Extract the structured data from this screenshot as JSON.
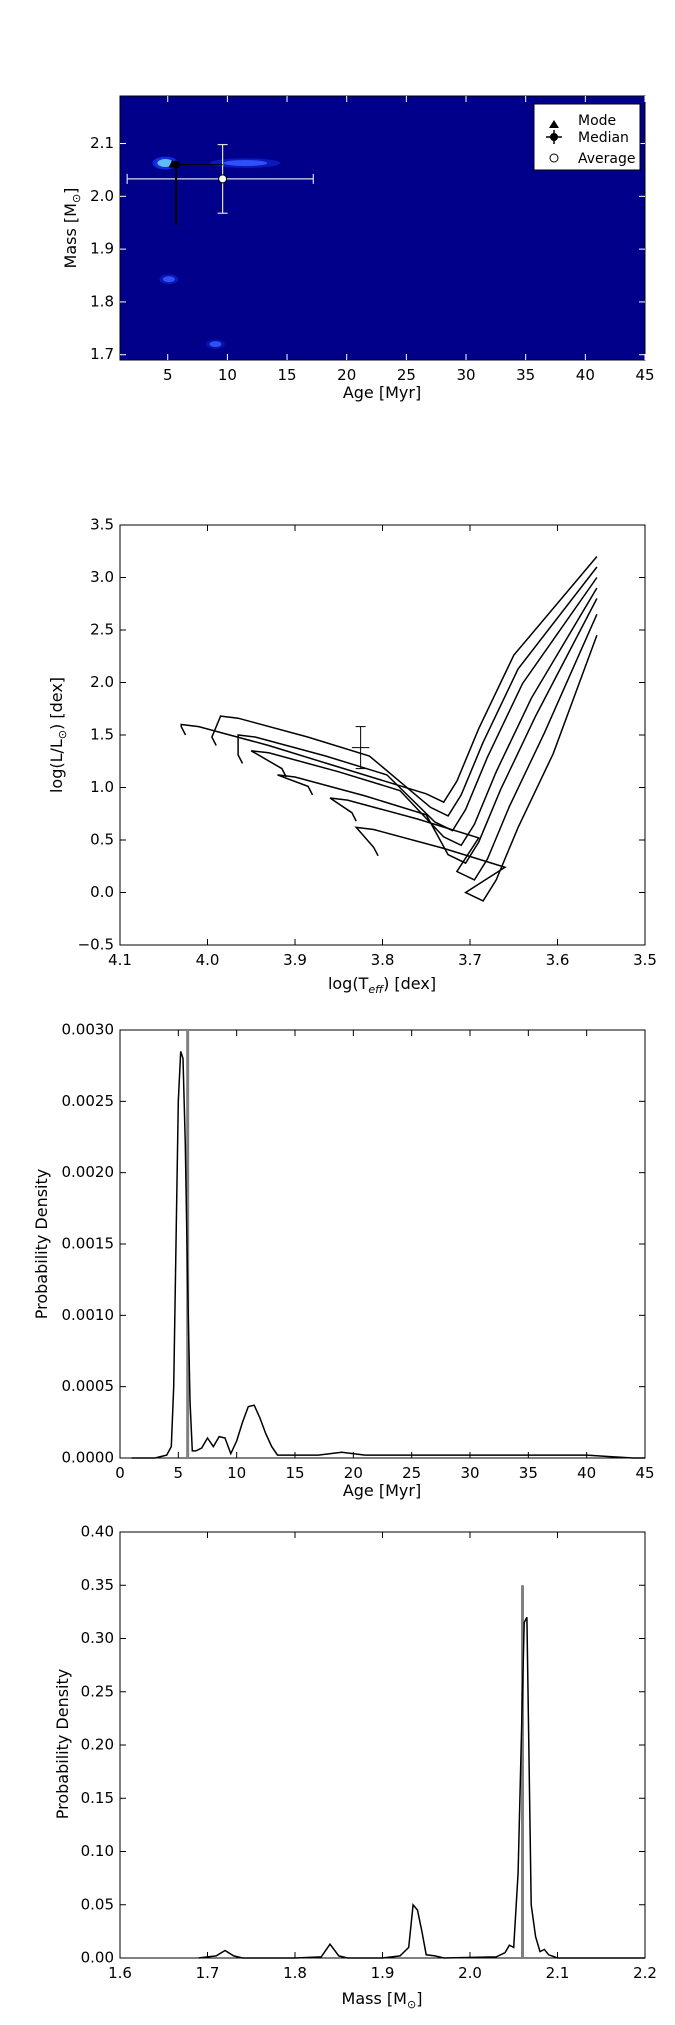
{
  "chart_data": [
    {
      "type": "heatmap",
      "xlabel": "Age [Myr]",
      "ylabel": "Mass [M",
      "ylabel_sub": "⊙",
      "ylabel_end": "]",
      "xlim": [
        1,
        45
      ],
      "ylim": [
        1.69,
        2.19
      ],
      "xticks": [
        "5",
        "10",
        "15",
        "20",
        "25",
        "30",
        "35",
        "40",
        "45"
      ],
      "yticks": [
        "1.7",
        "1.8",
        "1.9",
        "2.0",
        "2.1"
      ],
      "background_color": "#00008B",
      "legend": {
        "position": "top-right",
        "entries": [
          "Mode",
          "Median",
          "Average"
        ]
      },
      "markers": {
        "mode": {
          "x": 5.4,
          "y": 2.06
        },
        "median": {
          "x": 5.7,
          "y": 2.06,
          "xerr": [
            5.5,
            6.0
          ],
          "yerr": [
            1.945,
            2.065
          ]
        },
        "average": {
          "x": 9.6,
          "y": 2.033,
          "xerr": [
            1.6,
            17.2
          ],
          "yerr": [
            1.968,
            2.098
          ]
        }
      },
      "hotspots": [
        {
          "x": 4.8,
          "y": 2.063,
          "intensity": 1.0
        },
        {
          "x": 11.5,
          "y": 2.063,
          "intensity": 0.4
        },
        {
          "x": 5.1,
          "y": 1.843,
          "intensity": 0.35
        },
        {
          "x": 9.0,
          "y": 1.72,
          "intensity": 0.15
        }
      ]
    },
    {
      "type": "line",
      "xlabel": "log(T",
      "xlabel_sub": "eff",
      "xlabel_end": ") [dex]",
      "ylabel": "log(L/L",
      "ylabel_sub": "⊙",
      "ylabel_end": ") [dex]",
      "xlim": [
        4.1,
        3.5
      ],
      "ylim": [
        -0.5,
        3.5
      ],
      "xticks": [
        "4.1",
        "4.0",
        "3.9",
        "3.8",
        "3.7",
        "3.6",
        "3.5"
      ],
      "yticks": [
        "−0.5",
        "0.0",
        "0.5",
        "1.0",
        "1.5",
        "2.0",
        "2.5",
        "3.0",
        "3.5"
      ],
      "point": {
        "x": 3.825,
        "y": 1.38,
        "xerr": 0.01,
        "yerr": 0.2
      },
      "series": [
        {
          "start": [
            4.025,
            1.5
          ],
          "loop_top": [
            4.03,
            1.6
          ],
          "loop_max": 1.6,
          "knee_x": 3.73,
          "knee_y": 0.86,
          "end_y": 3.2
        },
        {
          "start": [
            3.99,
            1.4
          ],
          "loop_top": [
            3.985,
            1.68
          ],
          "loop_max": 1.68,
          "knee_x": 3.725,
          "knee_y": 0.73,
          "end_y": 3.1
        },
        {
          "start": [
            3.96,
            1.23
          ],
          "loop_top": [
            3.965,
            1.5
          ],
          "loop_max": 1.5,
          "knee_x": 3.72,
          "knee_y": 0.59,
          "end_y": 3.0
        },
        {
          "start": [
            3.91,
            1.1
          ],
          "loop_top": [
            3.95,
            1.35
          ],
          "loop_max": 1.35,
          "knee_x": 3.71,
          "knee_y": 0.45,
          "end_y": 2.9
        },
        {
          "start": [
            3.88,
            0.93
          ],
          "loop_top": [
            3.92,
            1.12
          ],
          "loop_max": 1.12,
          "knee_x": 3.705,
          "knee_y": 0.28,
          "end_y": 2.8
        },
        {
          "start": [
            3.83,
            0.68
          ],
          "loop_top": [
            3.86,
            0.9
          ],
          "loop_max": 0.9,
          "knee_x": 3.695,
          "knee_y": 0.12,
          "end_y": 2.65
        },
        {
          "start": [
            3.805,
            0.35
          ],
          "loop_top": [
            3.83,
            0.62
          ],
          "loop_max": 0.62,
          "knee_x": 3.685,
          "knee_y": -0.08,
          "end_y": 2.45
        }
      ]
    },
    {
      "type": "line",
      "xlabel": "Age [Myr]",
      "ylabel": "Probability Density",
      "xlim": [
        0,
        45
      ],
      "ylim": [
        0,
        0.003
      ],
      "xticks": [
        "0",
        "5",
        "10",
        "15",
        "20",
        "25",
        "30",
        "35",
        "40",
        "45"
      ],
      "yticks": [
        "0.0000",
        "0.0005",
        "0.0010",
        "0.0015",
        "0.0020",
        "0.0025",
        "0.0030"
      ],
      "vline": 5.8,
      "x": [
        1,
        3,
        4,
        4.4,
        4.6,
        4.8,
        5.0,
        5.2,
        5.4,
        5.6,
        5.8,
        6.0,
        6.2,
        6.5,
        7,
        7.5,
        8,
        8.5,
        9,
        9.5,
        10,
        10.5,
        11,
        11.5,
        12,
        12.5,
        13,
        13.5,
        14,
        15,
        17,
        19,
        21,
        25,
        30,
        35,
        40,
        42,
        44,
        45
      ],
      "y": [
        0,
        0,
        2e-05,
        8e-05,
        0.0005,
        0.0015,
        0.0025,
        0.00285,
        0.0028,
        0.0022,
        0.0012,
        0.0004,
        5e-05,
        5e-05,
        7e-05,
        0.00014,
        8e-05,
        0.00015,
        0.00014,
        3e-05,
        0.00012,
        0.00025,
        0.00036,
        0.00037,
        0.00028,
        0.00017,
        8e-05,
        2e-05,
        2e-05,
        2e-05,
        2e-05,
        4e-05,
        2e-05,
        2e-05,
        2e-05,
        2e-05,
        2e-05,
        1e-05,
        0,
        0
      ]
    },
    {
      "type": "line",
      "xlabel": "Mass [M",
      "xlabel_sub": "⊙",
      "xlabel_end": "]",
      "ylabel": "Probability Density",
      "xlim": [
        1.6,
        2.2
      ],
      "ylim": [
        0,
        0.4
      ],
      "xticks": [
        "1.6",
        "1.7",
        "1.8",
        "1.9",
        "2.0",
        "2.1",
        "2.2"
      ],
      "yticks": [
        "0.00",
        "0.05",
        "0.10",
        "0.15",
        "0.20",
        "0.25",
        "0.30",
        "0.35",
        "0.40"
      ],
      "vline": 2.06,
      "vline_top": 0.35,
      "x": [
        1.69,
        1.7,
        1.71,
        1.72,
        1.73,
        1.74,
        1.8,
        1.83,
        1.84,
        1.85,
        1.86,
        1.9,
        1.92,
        1.93,
        1.935,
        1.94,
        1.945,
        1.95,
        1.96,
        1.97,
        2.03,
        2.04,
        2.045,
        2.05,
        2.055,
        2.06,
        2.062,
        2.065,
        2.07,
        2.075,
        2.08,
        2.085,
        2.09,
        2.1,
        2.2
      ],
      "y": [
        0,
        0.001,
        0.002,
        0.007,
        0.002,
        0,
        0,
        0.001,
        0.013,
        0.002,
        0,
        0,
        0.002,
        0.01,
        0.05,
        0.045,
        0.025,
        0.003,
        0.002,
        0,
        0.001,
        0.005,
        0.012,
        0.01,
        0.08,
        0.25,
        0.315,
        0.32,
        0.05,
        0.02,
        0.006,
        0.008,
        0.003,
        0,
        0
      ]
    }
  ]
}
